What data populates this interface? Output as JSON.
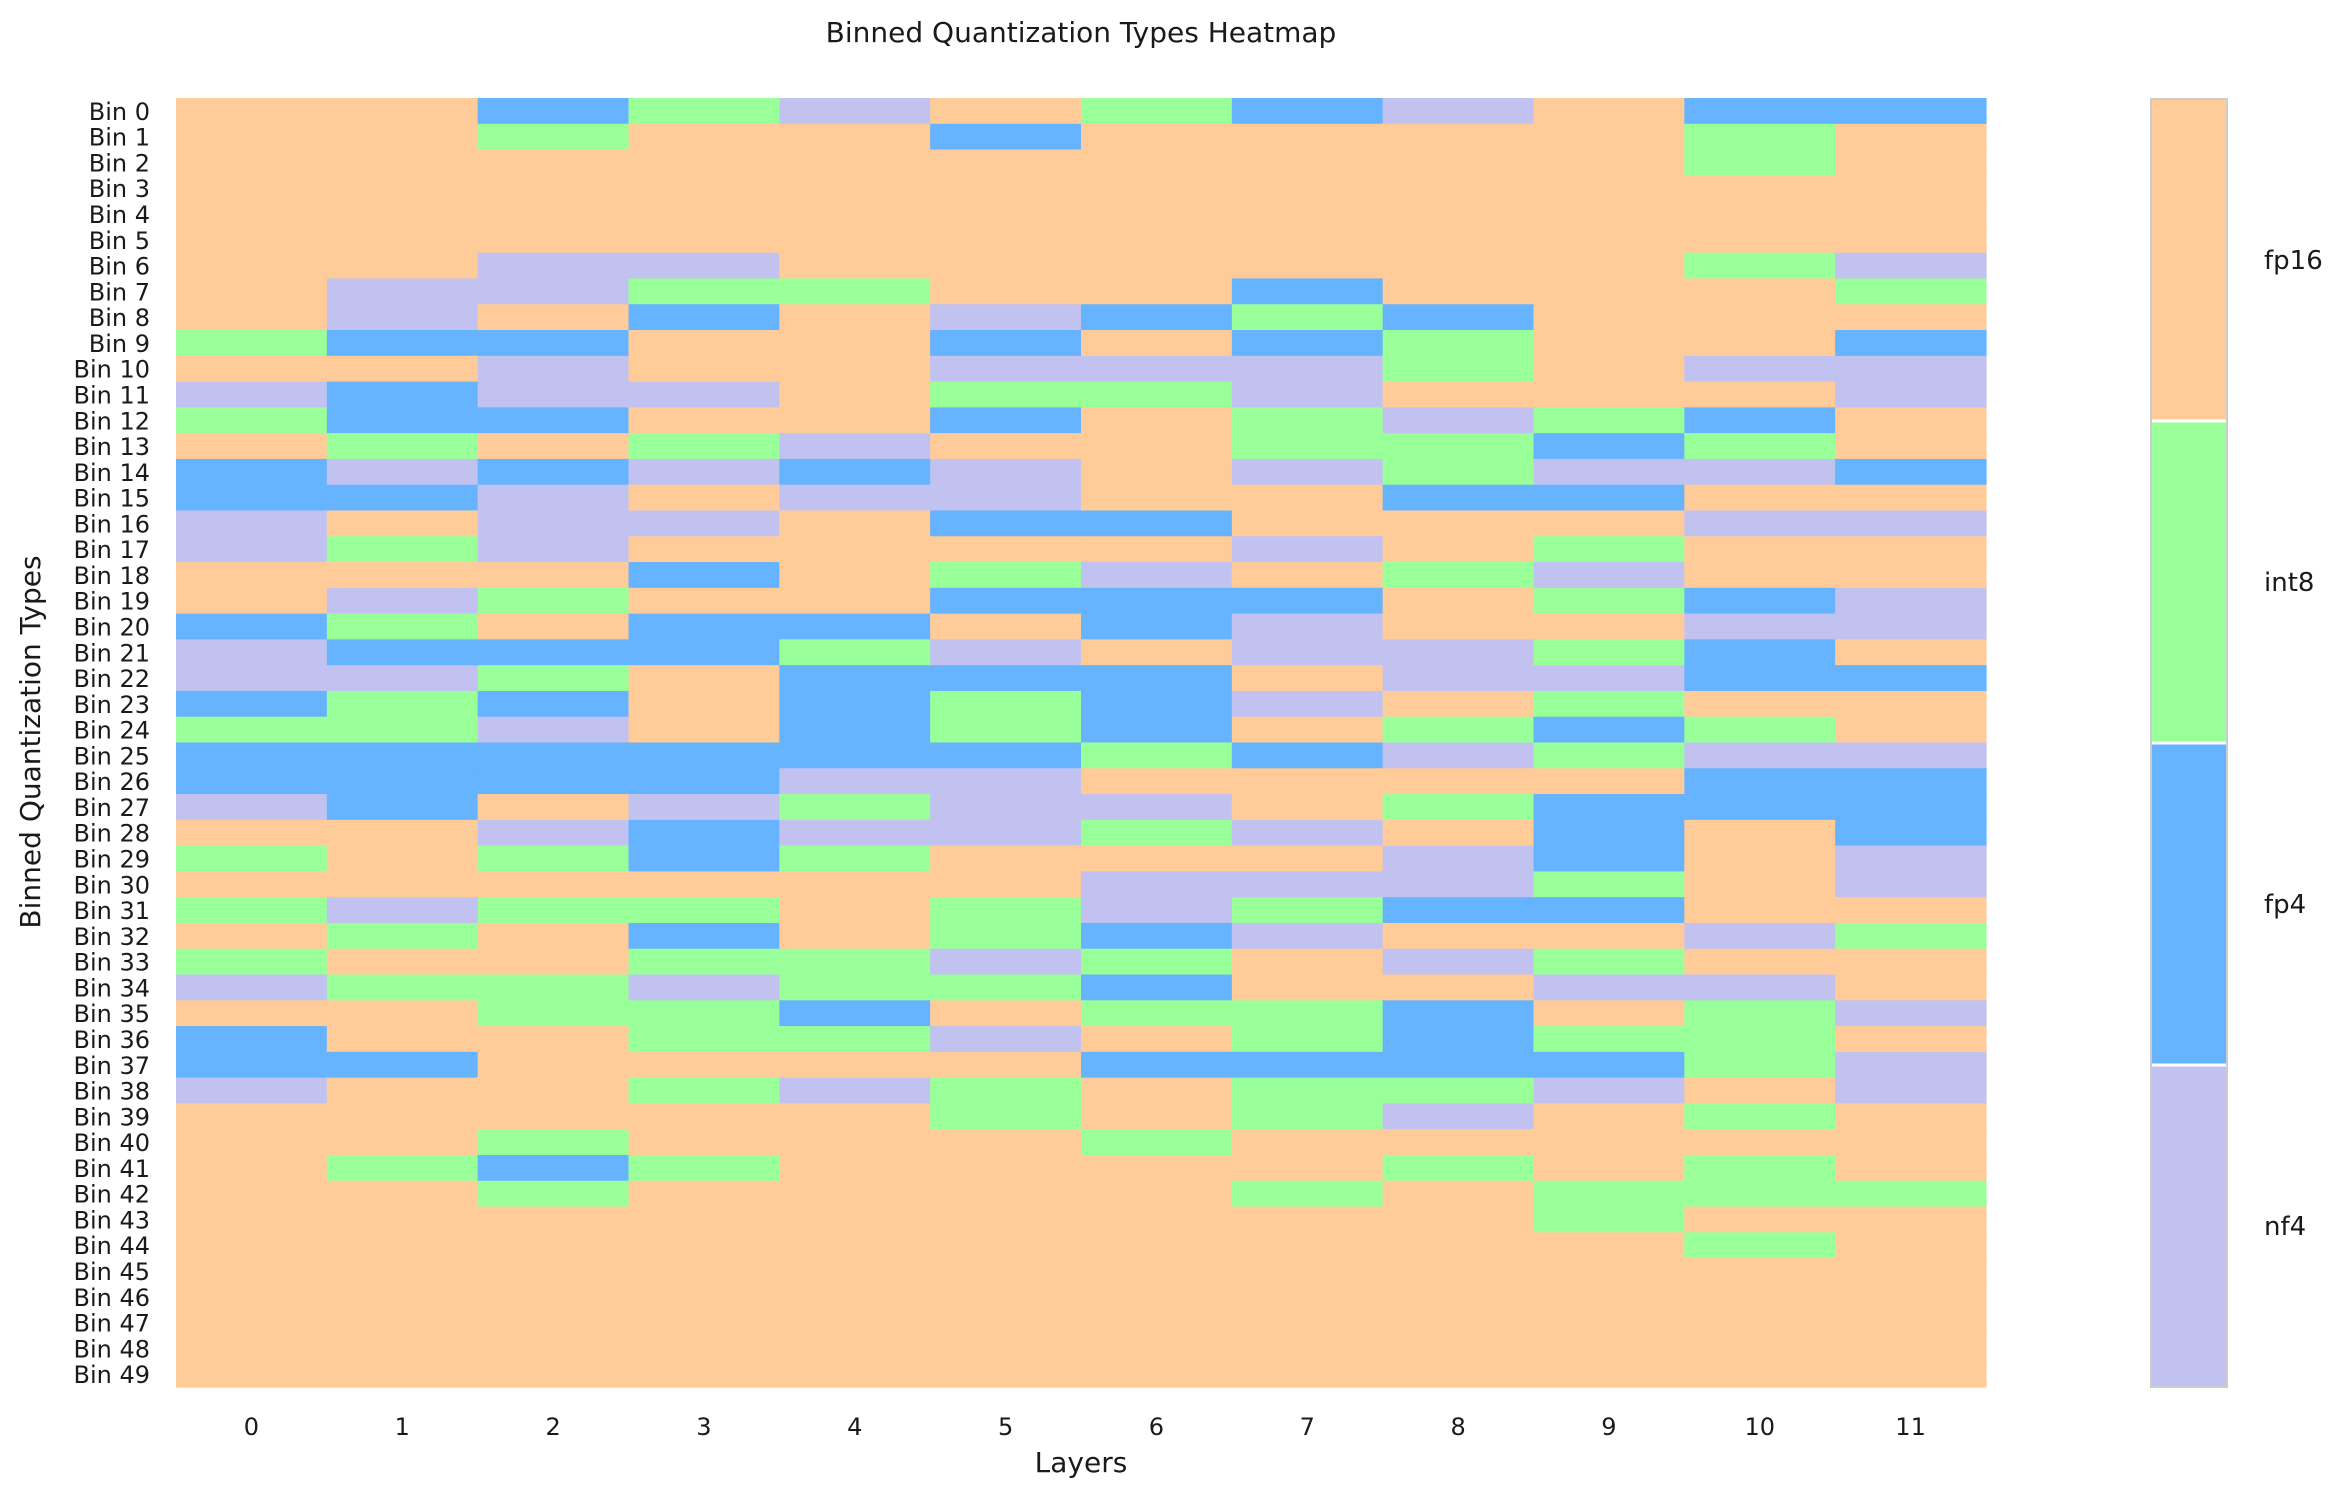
{
  "chart_data": {
    "type": "heatmap",
    "title": "Binned Quantization Types Heatmap",
    "xlabel": "Layers",
    "ylabel": "Binned Quantization Types",
    "x_labels": [
      "0",
      "1",
      "2",
      "3",
      "4",
      "5",
      "6",
      "7",
      "8",
      "9",
      "10",
      "11"
    ],
    "y_labels": [
      "Bin 0",
      "Bin 1",
      "Bin 2",
      "Bin 3",
      "Bin 4",
      "Bin 5",
      "Bin 6",
      "Bin 7",
      "Bin 8",
      "Bin 9",
      "Bin 10",
      "Bin 11",
      "Bin 12",
      "Bin 13",
      "Bin 14",
      "Bin 15",
      "Bin 16",
      "Bin 17",
      "Bin 18",
      "Bin 19",
      "Bin 20",
      "Bin 21",
      "Bin 22",
      "Bin 23",
      "Bin 24",
      "Bin 25",
      "Bin 26",
      "Bin 27",
      "Bin 28",
      "Bin 29",
      "Bin 30",
      "Bin 31",
      "Bin 32",
      "Bin 33",
      "Bin 34",
      "Bin 35",
      "Bin 36",
      "Bin 37",
      "Bin 38",
      "Bin 39",
      "Bin 40",
      "Bin 41",
      "Bin 42",
      "Bin 43",
      "Bin 44",
      "Bin 45",
      "Bin 46",
      "Bin 47",
      "Bin 48",
      "Bin 49"
    ],
    "categories": [
      "fp16",
      "int8",
      "fp4",
      "nf4"
    ],
    "colors": {
      "fp16": "#ffcc99",
      "int8": "#99ff99",
      "fp4": "#66b3ff",
      "nf4": "#c2c2f0"
    },
    "colorbar_order_top_to_bottom": [
      "fp16",
      "int8",
      "fp4",
      "nf4"
    ],
    "grid": false,
    "values": [
      [
        "fp16",
        "fp16",
        "fp4",
        "int8",
        "nf4",
        "fp16",
        "int8",
        "fp4",
        "nf4",
        "fp16",
        "fp4",
        "fp4"
      ],
      [
        "fp16",
        "fp16",
        "int8",
        "fp16",
        "fp16",
        "fp4",
        "fp16",
        "fp16",
        "fp16",
        "fp16",
        "int8",
        "fp16"
      ],
      [
        "fp16",
        "fp16",
        "fp16",
        "fp16",
        "fp16",
        "fp16",
        "fp16",
        "fp16",
        "fp16",
        "fp16",
        "int8",
        "fp16"
      ],
      [
        "fp16",
        "fp16",
        "fp16",
        "fp16",
        "fp16",
        "fp16",
        "fp16",
        "fp16",
        "fp16",
        "fp16",
        "fp16",
        "fp16"
      ],
      [
        "fp16",
        "fp16",
        "fp16",
        "fp16",
        "fp16",
        "fp16",
        "fp16",
        "fp16",
        "fp16",
        "fp16",
        "fp16",
        "fp16"
      ],
      [
        "fp16",
        "fp16",
        "fp16",
        "fp16",
        "fp16",
        "fp16",
        "fp16",
        "fp16",
        "fp16",
        "fp16",
        "fp16",
        "fp16"
      ],
      [
        "fp16",
        "fp16",
        "nf4",
        "nf4",
        "fp16",
        "fp16",
        "fp16",
        "fp16",
        "fp16",
        "fp16",
        "int8",
        "nf4"
      ],
      [
        "fp16",
        "nf4",
        "nf4",
        "int8",
        "int8",
        "fp16",
        "fp16",
        "fp4",
        "fp16",
        "fp16",
        "fp16",
        "int8"
      ],
      [
        "fp16",
        "nf4",
        "fp16",
        "fp4",
        "fp16",
        "nf4",
        "fp4",
        "int8",
        "fp4",
        "fp16",
        "fp16",
        "fp16"
      ],
      [
        "int8",
        "fp4",
        "fp4",
        "fp16",
        "fp16",
        "fp4",
        "fp16",
        "fp4",
        "int8",
        "fp16",
        "fp16",
        "fp4"
      ],
      [
        "fp16",
        "fp16",
        "nf4",
        "fp16",
        "fp16",
        "nf4",
        "nf4",
        "nf4",
        "int8",
        "fp16",
        "nf4",
        "nf4"
      ],
      [
        "nf4",
        "fp4",
        "nf4",
        "nf4",
        "fp16",
        "int8",
        "int8",
        "nf4",
        "fp16",
        "fp16",
        "fp16",
        "nf4"
      ],
      [
        "int8",
        "fp4",
        "fp4",
        "fp16",
        "fp16",
        "fp4",
        "fp16",
        "int8",
        "nf4",
        "int8",
        "fp4",
        "fp16"
      ],
      [
        "fp16",
        "int8",
        "fp16",
        "int8",
        "nf4",
        "fp16",
        "fp16",
        "int8",
        "int8",
        "fp4",
        "int8",
        "fp16"
      ],
      [
        "fp4",
        "nf4",
        "fp4",
        "nf4",
        "fp4",
        "nf4",
        "fp16",
        "nf4",
        "int8",
        "nf4",
        "nf4",
        "fp4"
      ],
      [
        "fp4",
        "fp4",
        "nf4",
        "fp16",
        "nf4",
        "nf4",
        "fp16",
        "fp16",
        "fp4",
        "fp4",
        "fp16",
        "fp16"
      ],
      [
        "nf4",
        "fp16",
        "nf4",
        "nf4",
        "fp16",
        "fp4",
        "fp4",
        "fp16",
        "fp16",
        "fp16",
        "nf4",
        "nf4"
      ],
      [
        "nf4",
        "int8",
        "nf4",
        "fp16",
        "fp16",
        "fp16",
        "fp16",
        "nf4",
        "fp16",
        "int8",
        "fp16",
        "fp16"
      ],
      [
        "fp16",
        "fp16",
        "fp16",
        "fp4",
        "fp16",
        "int8",
        "nf4",
        "fp16",
        "int8",
        "nf4",
        "fp16",
        "fp16"
      ],
      [
        "fp16",
        "nf4",
        "int8",
        "fp16",
        "fp16",
        "fp4",
        "fp4",
        "fp4",
        "fp16",
        "int8",
        "fp4",
        "nf4"
      ],
      [
        "fp4",
        "int8",
        "fp16",
        "fp4",
        "fp4",
        "fp16",
        "fp4",
        "nf4",
        "fp16",
        "fp16",
        "nf4",
        "nf4"
      ],
      [
        "nf4",
        "fp4",
        "fp4",
        "fp4",
        "int8",
        "nf4",
        "fp16",
        "nf4",
        "nf4",
        "int8",
        "fp4",
        "fp16"
      ],
      [
        "nf4",
        "nf4",
        "int8",
        "fp16",
        "fp4",
        "fp4",
        "fp4",
        "fp16",
        "nf4",
        "nf4",
        "fp4",
        "fp4"
      ],
      [
        "fp4",
        "int8",
        "fp4",
        "fp16",
        "fp4",
        "int8",
        "fp4",
        "nf4",
        "fp16",
        "int8",
        "fp16",
        "fp16"
      ],
      [
        "int8",
        "int8",
        "nf4",
        "fp16",
        "fp4",
        "int8",
        "fp4",
        "fp16",
        "int8",
        "fp4",
        "int8",
        "fp16"
      ],
      [
        "fp4",
        "fp4",
        "fp4",
        "fp4",
        "fp4",
        "fp4",
        "int8",
        "fp4",
        "nf4",
        "int8",
        "nf4",
        "nf4"
      ],
      [
        "fp4",
        "fp4",
        "fp4",
        "fp4",
        "nf4",
        "nf4",
        "fp16",
        "fp16",
        "fp16",
        "fp16",
        "fp4",
        "fp4"
      ],
      [
        "nf4",
        "fp4",
        "fp16",
        "nf4",
        "int8",
        "nf4",
        "nf4",
        "fp16",
        "int8",
        "fp4",
        "fp4",
        "fp4"
      ],
      [
        "fp16",
        "fp16",
        "nf4",
        "fp4",
        "nf4",
        "nf4",
        "int8",
        "nf4",
        "fp16",
        "fp4",
        "fp16",
        "fp4"
      ],
      [
        "int8",
        "fp16",
        "int8",
        "fp4",
        "int8",
        "fp16",
        "fp16",
        "fp16",
        "nf4",
        "fp4",
        "fp16",
        "nf4"
      ],
      [
        "fp16",
        "fp16",
        "fp16",
        "fp16",
        "fp16",
        "fp16",
        "nf4",
        "nf4",
        "nf4",
        "int8",
        "fp16",
        "nf4"
      ],
      [
        "int8",
        "nf4",
        "int8",
        "int8",
        "fp16",
        "int8",
        "nf4",
        "int8",
        "fp4",
        "fp4",
        "fp16",
        "fp16"
      ],
      [
        "fp16",
        "int8",
        "fp16",
        "fp4",
        "fp16",
        "int8",
        "fp4",
        "nf4",
        "fp16",
        "fp16",
        "nf4",
        "int8"
      ],
      [
        "int8",
        "fp16",
        "fp16",
        "int8",
        "int8",
        "nf4",
        "int8",
        "fp16",
        "nf4",
        "int8",
        "fp16",
        "fp16"
      ],
      [
        "nf4",
        "int8",
        "int8",
        "nf4",
        "int8",
        "int8",
        "fp4",
        "fp16",
        "fp16",
        "nf4",
        "nf4",
        "fp16"
      ],
      [
        "fp16",
        "fp16",
        "int8",
        "int8",
        "fp4",
        "fp16",
        "int8",
        "int8",
        "fp4",
        "fp16",
        "int8",
        "nf4"
      ],
      [
        "fp4",
        "fp16",
        "fp16",
        "int8",
        "int8",
        "nf4",
        "fp16",
        "int8",
        "fp4",
        "int8",
        "int8",
        "fp16"
      ],
      [
        "fp4",
        "fp4",
        "fp16",
        "fp16",
        "fp16",
        "fp16",
        "fp4",
        "fp4",
        "fp4",
        "fp4",
        "int8",
        "nf4"
      ],
      [
        "nf4",
        "fp16",
        "fp16",
        "int8",
        "nf4",
        "int8",
        "fp16",
        "int8",
        "int8",
        "nf4",
        "fp16",
        "nf4"
      ],
      [
        "fp16",
        "fp16",
        "fp16",
        "fp16",
        "fp16",
        "int8",
        "fp16",
        "int8",
        "nf4",
        "fp16",
        "int8",
        "fp16"
      ],
      [
        "fp16",
        "fp16",
        "int8",
        "fp16",
        "fp16",
        "fp16",
        "int8",
        "fp16",
        "fp16",
        "fp16",
        "fp16",
        "fp16"
      ],
      [
        "fp16",
        "int8",
        "fp4",
        "int8",
        "fp16",
        "fp16",
        "fp16",
        "fp16",
        "int8",
        "fp16",
        "int8",
        "fp16"
      ],
      [
        "fp16",
        "fp16",
        "int8",
        "fp16",
        "fp16",
        "fp16",
        "fp16",
        "int8",
        "fp16",
        "int8",
        "int8",
        "int8"
      ],
      [
        "fp16",
        "fp16",
        "fp16",
        "fp16",
        "fp16",
        "fp16",
        "fp16",
        "fp16",
        "fp16",
        "int8",
        "fp16",
        "fp16"
      ],
      [
        "fp16",
        "fp16",
        "fp16",
        "fp16",
        "fp16",
        "fp16",
        "fp16",
        "fp16",
        "fp16",
        "fp16",
        "int8",
        "fp16"
      ],
      [
        "fp16",
        "fp16",
        "fp16",
        "fp16",
        "fp16",
        "fp16",
        "fp16",
        "fp16",
        "fp16",
        "fp16",
        "fp16",
        "fp16"
      ],
      [
        "fp16",
        "fp16",
        "fp16",
        "fp16",
        "fp16",
        "fp16",
        "fp16",
        "fp16",
        "fp16",
        "fp16",
        "fp16",
        "fp16"
      ],
      [
        "fp16",
        "fp16",
        "fp16",
        "fp16",
        "fp16",
        "fp16",
        "fp16",
        "fp16",
        "fp16",
        "fp16",
        "fp16",
        "fp16"
      ],
      [
        "fp16",
        "fp16",
        "fp16",
        "fp16",
        "fp16",
        "fp16",
        "fp16",
        "fp16",
        "fp16",
        "fp16",
        "fp16",
        "fp16"
      ],
      [
        "fp16",
        "fp16",
        "fp16",
        "fp16",
        "fp16",
        "fp16",
        "fp16",
        "fp16",
        "fp16",
        "fp16",
        "fp16",
        "fp16"
      ]
    ]
  }
}
